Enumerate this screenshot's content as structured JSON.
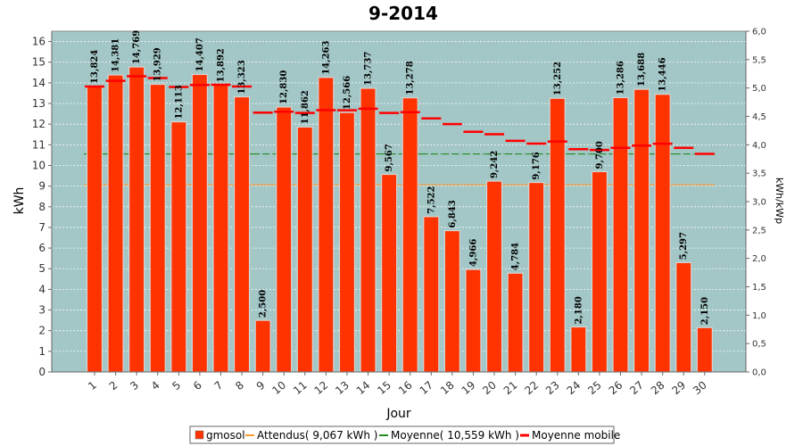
{
  "chart_data": {
    "type": "bar",
    "title": "9-2014",
    "xlabel": "Jour",
    "ylabel": "kWh",
    "y2label": "kWh/kWp",
    "ylim": [
      0,
      16.5
    ],
    "y2lim": [
      0,
      6.0
    ],
    "y_ticks": [
      "0",
      "1",
      "2",
      "3",
      "4",
      "5",
      "6",
      "7",
      "8",
      "9",
      "10",
      "11",
      "12",
      "13",
      "14",
      "15",
      "16"
    ],
    "y2_ticks": [
      "0,0",
      "0,5",
      "1,0",
      "1,5",
      "2,0",
      "2,5",
      "3,0",
      "3,5",
      "4,0",
      "4,5",
      "5,0",
      "5,5",
      "6,0"
    ],
    "categories": [
      "1",
      "2",
      "3",
      "4",
      "5",
      "6",
      "7",
      "8",
      "9",
      "10",
      "11",
      "12",
      "13",
      "14",
      "15",
      "16",
      "17",
      "18",
      "19",
      "20",
      "21",
      "22",
      "23",
      "24",
      "25",
      "26",
      "27",
      "28",
      "29",
      "30"
    ],
    "series": [
      {
        "name": "gmosol",
        "color": "#ff3300",
        "values": [
          13.824,
          14.381,
          14.769,
          13.929,
          12.113,
          14.407,
          13.892,
          13.323,
          2.5,
          12.83,
          11.862,
          14.263,
          12.566,
          13.737,
          9.567,
          13.278,
          7.522,
          6.843,
          4.966,
          9.242,
          4.784,
          9.176,
          13.252,
          2.18,
          9.7,
          13.286,
          13.688,
          13.446,
          5.297,
          2.15
        ],
        "labels": [
          "13,824",
          "14,381",
          "14,769",
          "13,929",
          "12,113",
          "14,407",
          "13,892",
          "13,323",
          "2,500",
          "12,830",
          "11,862",
          "14,263",
          "12,566",
          "13,737",
          "9,567",
          "13,278",
          "7,522",
          "6,843",
          "4,966",
          "9,242",
          "4,784",
          "9,176",
          "13,252",
          "2,180",
          "9,700",
          "13,286",
          "13,688",
          "13,446",
          "5,297",
          "2,150"
        ]
      },
      {
        "name": "Attendus( 9,067 kWh )",
        "color": "#ff9933",
        "value": 9.067
      },
      {
        "name": "Moyenne( 10,559 kWh )",
        "color": "#228b22",
        "value": 10.559
      },
      {
        "name": "Moyenne mobile",
        "color": "#ff0000",
        "values": [
          13.824,
          14.1,
          14.32,
          14.23,
          13.8,
          13.9,
          13.91,
          13.82,
          12.56,
          12.6,
          12.54,
          12.68,
          12.67,
          12.75,
          12.54,
          12.58,
          12.28,
          12.0,
          11.63,
          11.51,
          11.19,
          11.06,
          11.16,
          10.79,
          10.75,
          10.85,
          10.96,
          11.05,
          10.85,
          10.56
        ]
      }
    ],
    "legend_position": "bottom",
    "grid": true
  }
}
